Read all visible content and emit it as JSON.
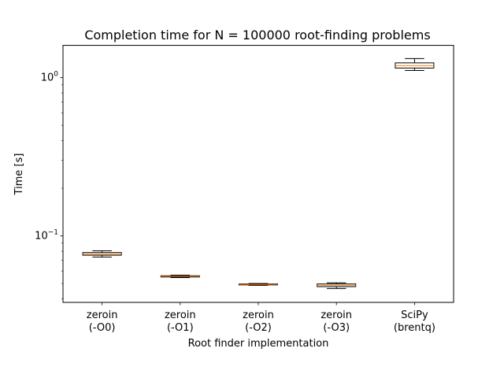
{
  "chart_data": {
    "type": "box",
    "title": "Completion time for N = 100000 root-finding problems",
    "xlabel": "Root finder implementation",
    "ylabel": "Time [s]",
    "yscale": "log",
    "ylim": [
      0.038,
      1.6
    ],
    "y_major_ticks": [
      {
        "value": 0.1,
        "base": "10",
        "exp": "−1"
      },
      {
        "value": 1,
        "base": "10",
        "exp": "0"
      }
    ],
    "categories": [
      {
        "line1": "zeroin",
        "line2": "(-O0)"
      },
      {
        "line1": "zeroin",
        "line2": "(-O1)"
      },
      {
        "line1": "zeroin",
        "line2": "(-O2)"
      },
      {
        "line1": "zeroin",
        "line2": "(-O3)"
      },
      {
        "line1": "SciPy",
        "line2": "(brentq)"
      }
    ],
    "boxes": [
      {
        "whisker_low": 0.0735,
        "q1": 0.0755,
        "median": 0.0768,
        "q3": 0.0785,
        "whisker_high": 0.0805
      },
      {
        "whisker_low": 0.0545,
        "q1": 0.055,
        "median": 0.0556,
        "q3": 0.056,
        "whisker_high": 0.0565
      },
      {
        "whisker_low": 0.0487,
        "q1": 0.049,
        "median": 0.0493,
        "q3": 0.0497,
        "whisker_high": 0.05
      },
      {
        "whisker_low": 0.0465,
        "q1": 0.0478,
        "median": 0.0487,
        "q3": 0.0497,
        "whisker_high": 0.0505
      },
      {
        "whisker_low": 1.11,
        "q1": 1.15,
        "median": 1.19,
        "q3": 1.24,
        "whisker_high": 1.32
      }
    ],
    "colors": {
      "box_edge": "#000000",
      "median": "#ff7f0e",
      "axes": "#000000"
    },
    "grid": false
  }
}
